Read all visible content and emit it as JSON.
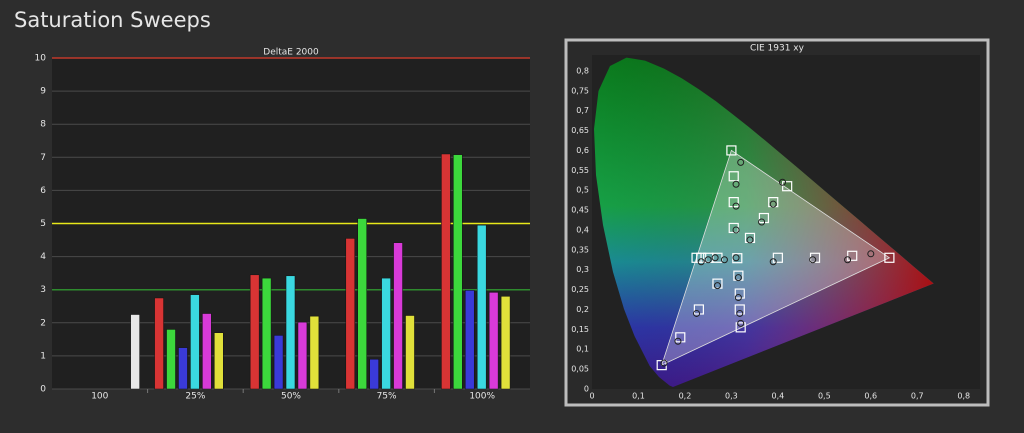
{
  "page_title": "Saturation Sweeps",
  "chart_data": [
    {
      "type": "bar",
      "title": "DeltaE 2000",
      "categories": [
        "100",
        "25%",
        "50%",
        "75%",
        "100%"
      ],
      "series": [
        {
          "color": "#d83434",
          "values": [
            null,
            2.75,
            3.45,
            4.55,
            7.1
          ]
        },
        {
          "color": "#3cd83c",
          "values": [
            null,
            1.8,
            3.35,
            5.15,
            7.08
          ]
        },
        {
          "color": "#3a3ad8",
          "values": [
            null,
            1.25,
            1.62,
            0.9,
            2.98
          ]
        },
        {
          "color": "#3ad8e0",
          "values": [
            null,
            2.85,
            3.42,
            3.35,
            4.95
          ]
        },
        {
          "color": "#d83ad8",
          "values": [
            null,
            2.28,
            2.02,
            4.42,
            2.92
          ]
        },
        {
          "color": "#e0e03a",
          "values": [
            null,
            1.7,
            2.2,
            2.22,
            2.8
          ]
        },
        {
          "color": "#e8e8e8",
          "values": [
            2.25,
            null,
            null,
            null,
            null
          ]
        }
      ],
      "ylim": [
        0,
        10
      ],
      "yticks": [
        0,
        1,
        2,
        3,
        4,
        5,
        6,
        7,
        8,
        9,
        10
      ],
      "grid": true,
      "reference_lines": [
        {
          "value": 10,
          "color": "#c0392b"
        },
        {
          "value": 5,
          "color": "#e8e81a"
        },
        {
          "value": 3,
          "color": "#2e8b2e"
        }
      ]
    },
    {
      "type": "scatter",
      "title": "CIE 1931 xy",
      "xlim": [
        0,
        0.835
      ],
      "ylim": [
        0,
        0.84
      ],
      "xticks": [
        0,
        {
          "value": 0.1,
          "label": "0,1"
        },
        {
          "value": 0.2,
          "label": "0,2"
        },
        {
          "value": 0.3,
          "label": "0,3"
        },
        {
          "value": 0.4,
          "label": "0,4"
        },
        {
          "value": 0.5,
          "label": "0,5"
        },
        {
          "value": 0.6,
          "label": "0,6"
        },
        {
          "value": 0.7,
          "label": "0,7"
        },
        {
          "value": 0.8,
          "label": "0,8"
        }
      ],
      "yticks": [
        0,
        {
          "value": 0.05,
          "label": "0,05"
        },
        {
          "value": 0.1,
          "label": "0,1"
        },
        {
          "value": 0.15,
          "label": "0,15"
        },
        {
          "value": 0.2,
          "label": "0,2"
        },
        {
          "value": 0.25,
          "label": "0,25"
        },
        {
          "value": 0.3,
          "label": "0,3"
        },
        {
          "value": 0.35,
          "label": "0,35"
        },
        {
          "value": 0.4,
          "label": "0,4"
        },
        {
          "value": 0.45,
          "label": "0,45"
        },
        {
          "value": 0.5,
          "label": "0,5"
        },
        {
          "value": 0.55,
          "label": "0,55"
        },
        {
          "value": 0.6,
          "label": "0,6"
        },
        {
          "value": 0.65,
          "label": "0,65"
        },
        {
          "value": 0.7,
          "label": "0,7"
        },
        {
          "value": 0.75,
          "label": "0,75"
        },
        {
          "value": 0.8,
          "label": "0,8"
        }
      ],
      "series": [
        {
          "marker": "square",
          "color": "#ffffff",
          "x": [
            0.4,
            0.48,
            0.56,
            0.64,
            0.305,
            0.305,
            0.305,
            0.3,
            0.27,
            0.23,
            0.19,
            0.15,
            0.27,
            0.25,
            0.235,
            0.225,
            0.315,
            0.318,
            0.318,
            0.32,
            0.34,
            0.37,
            0.39,
            0.42,
            0.3127
          ],
          "y": [
            0.33,
            0.33,
            0.335,
            0.33,
            0.405,
            0.47,
            0.535,
            0.6,
            0.265,
            0.2,
            0.13,
            0.06,
            0.33,
            0.33,
            0.33,
            0.33,
            0.285,
            0.24,
            0.2,
            0.155,
            0.38,
            0.43,
            0.47,
            0.51,
            0.329
          ]
        },
        {
          "marker": "circle",
          "color": "#202020",
          "x": [
            0.39,
            0.475,
            0.55,
            0.6,
            0.31,
            0.31,
            0.31,
            0.32,
            0.27,
            0.225,
            0.185,
            0.155,
            0.285,
            0.265,
            0.25,
            0.235,
            0.315,
            0.315,
            0.318,
            0.32,
            0.34,
            0.365,
            0.39,
            0.41,
            0.31
          ],
          "y": [
            0.32,
            0.325,
            0.325,
            0.34,
            0.4,
            0.46,
            0.515,
            0.57,
            0.26,
            0.19,
            0.12,
            0.065,
            0.325,
            0.33,
            0.325,
            0.32,
            0.28,
            0.23,
            0.19,
            0.165,
            0.375,
            0.42,
            0.465,
            0.52,
            0.33
          ]
        }
      ]
    }
  ]
}
